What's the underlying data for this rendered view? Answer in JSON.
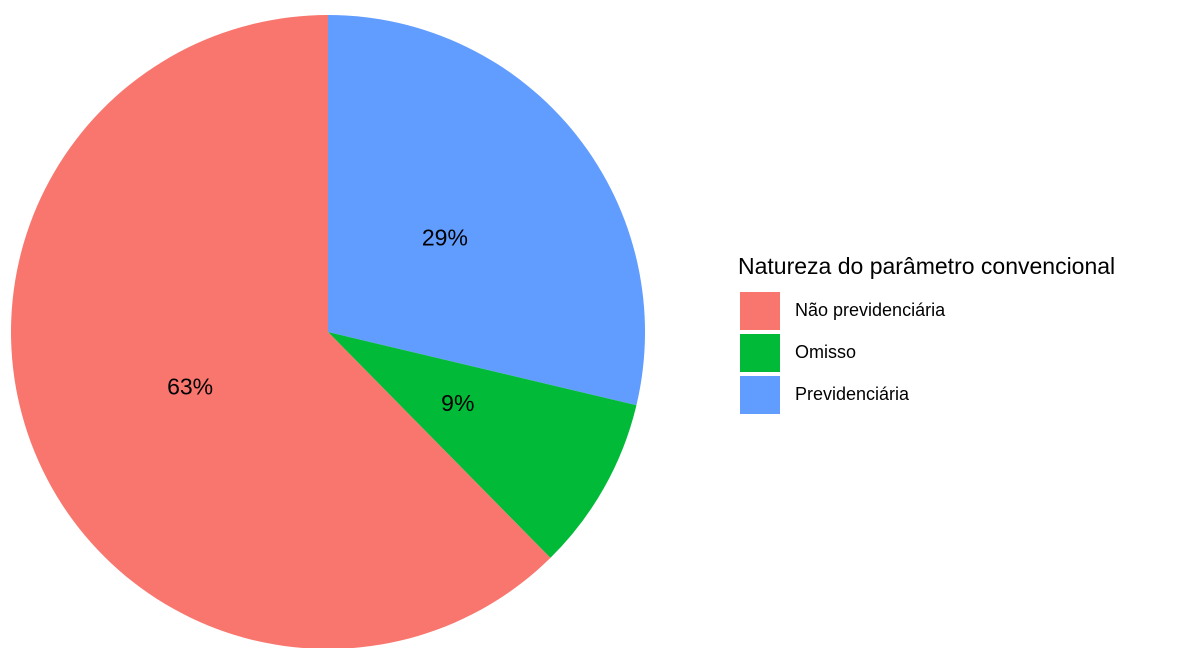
{
  "chart_data": {
    "type": "pie",
    "legend_title": "Natureza do parâmetro convencional",
    "categories": [
      "Não previdenciária",
      "Omisso",
      "Previdenciária"
    ],
    "values": [
      63,
      9,
      29
    ],
    "value_labels": [
      "63%",
      "9%",
      "29%"
    ],
    "colors": [
      "#f8766d",
      "#00ba38",
      "#619cff"
    ],
    "legend": "right"
  }
}
